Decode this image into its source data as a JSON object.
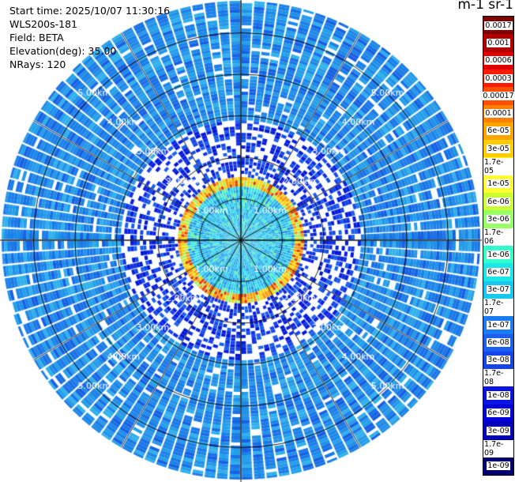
{
  "info": {
    "start_time": "Start time: 2025/10/07 11:30:16",
    "instrument": "WLS200s-181",
    "field": "Field: BETA",
    "elevation": "Elevation(deg): 35.00",
    "nrays": "NRays: 120"
  },
  "colorbar": {
    "title": "m-1 sr-1",
    "levels": [
      "0.0017",
      "0.001",
      "0.0006",
      "0.0003",
      "0.00017",
      "0.0001",
      "6e-05",
      "3e-05",
      "1.7e-05",
      "1e-05",
      "6e-06",
      "3e-06",
      "1.7e-06",
      "1e-06",
      "6e-07",
      "3e-07",
      "1.7e-07",
      "1e-07",
      "6e-08",
      "3e-08",
      "1.7e-08",
      "1e-08",
      "6e-09",
      "3e-09",
      "1.7e-09",
      "1e-09"
    ],
    "colors": [
      "#7f0000",
      "#b20000",
      "#e00000",
      "#ff1a00",
      "#ff4d00",
      "#ff8000",
      "#ffa500",
      "#ffcc00",
      "#ffff00",
      "#ffff33",
      "#ccff33",
      "#99ff66",
      "#66ff99",
      "#33ffcc",
      "#1ae6e6",
      "#19c8f0",
      "#1aa0f5",
      "#1a7bf5",
      "#1960f0",
      "#1444ea",
      "#0f2ae6",
      "#0a14e0",
      "#0000d8",
      "#0000b8",
      "#000098",
      "#000070"
    ]
  },
  "range_rings": {
    "labels": [
      "1.00km",
      "2.00km",
      "3.00km",
      "4.00km",
      "5.00km"
    ]
  },
  "ppi": {
    "nrays": 120
  }
}
